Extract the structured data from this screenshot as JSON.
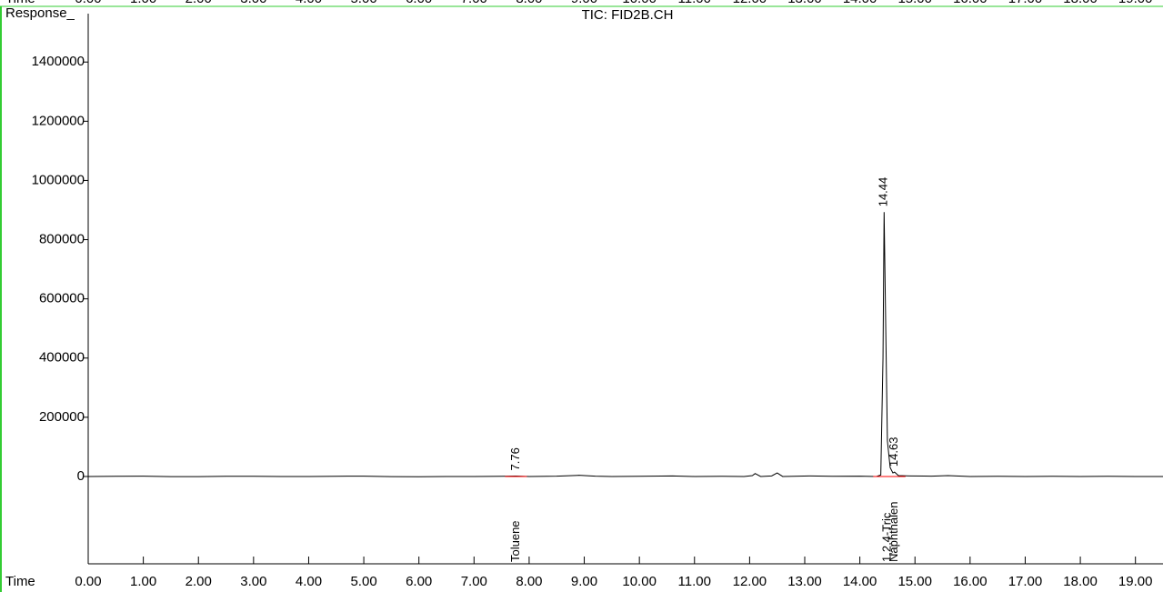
{
  "chart_data": {
    "type": "line",
    "title": "TIC: FID2B.CH",
    "y_label": "Response_",
    "x_label": "Time",
    "color": "#000000",
    "x": [
      0,
      0.5,
      1,
      1.5,
      2,
      2.5,
      3,
      3.5,
      4,
      4.5,
      5,
      5.5,
      6,
      6.5,
      7,
      7.5,
      7.76,
      8,
      8.5,
      8.9,
      9.2,
      9.5,
      10,
      10.6,
      11,
      11.5,
      11.9,
      12.05,
      12.1,
      12.2,
      12.4,
      12.5,
      12.6,
      13.1,
      13.5,
      14.0,
      14.3,
      14.38,
      14.42,
      14.44,
      14.47,
      14.5,
      14.55,
      14.6,
      14.63,
      14.7,
      14.9,
      15.3,
      15.6,
      16,
      16.5,
      17,
      17.5,
      18,
      18.5,
      19,
      19.5
    ],
    "values": [
      0,
      800,
      1000,
      -500,
      -500,
      500,
      500,
      0,
      0,
      800,
      1000,
      -500,
      -1000,
      0,
      0,
      500,
      1500,
      0,
      1000,
      4000,
      1000,
      0,
      500,
      2000,
      0,
      500,
      0,
      3000,
      10000,
      0,
      2000,
      12000,
      0,
      2000,
      500,
      1000,
      0,
      5000,
      400000,
      893000,
      500000,
      120000,
      30000,
      12000,
      15000,
      3000,
      2000,
      1000,
      3000,
      0,
      500,
      0,
      500,
      0,
      500,
      0,
      0
    ],
    "peaks": [
      {
        "rt": 7.76,
        "compound": "Toluene"
      },
      {
        "rt": 14.44,
        "compound": "1,2,4-Tric"
      },
      {
        "rt": 14.63,
        "compound": "Naphthalen"
      }
    ],
    "baseline_color": "#ff0000",
    "xlim": [
      0,
      19.5
    ],
    "ylim": [
      -295000,
      1585000
    ],
    "yticks": [
      0,
      200000,
      400000,
      600000,
      800000,
      1000000,
      1200000,
      1400000
    ],
    "xticks": [
      {
        "value": 0,
        "label": "0.00"
      },
      {
        "value": 1,
        "label": "1.00"
      },
      {
        "value": 2,
        "label": "2.00"
      },
      {
        "value": 3,
        "label": "3.00"
      },
      {
        "value": 4,
        "label": "4.00"
      },
      {
        "value": 5,
        "label": "5.00"
      },
      {
        "value": 6,
        "label": "6.00"
      },
      {
        "value": 7,
        "label": "7.00"
      },
      {
        "value": 8,
        "label": "8.00"
      },
      {
        "value": 9,
        "label": "9.00"
      },
      {
        "value": 10,
        "label": "10.00"
      },
      {
        "value": 11,
        "label": "11.00"
      },
      {
        "value": 12,
        "label": "12.00"
      },
      {
        "value": 13,
        "label": "13.00"
      },
      {
        "value": 14,
        "label": "14.00"
      },
      {
        "value": 15,
        "label": "15.00"
      },
      {
        "value": 16,
        "label": "16.00"
      },
      {
        "value": 17,
        "label": "17.00"
      },
      {
        "value": 18,
        "label": "18.00"
      },
      {
        "value": 19,
        "label": "19.00"
      }
    ]
  }
}
